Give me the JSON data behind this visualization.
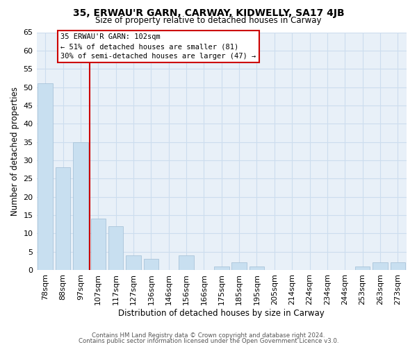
{
  "title": "35, ERWAU'R GARN, CARWAY, KIDWELLY, SA17 4JB",
  "subtitle": "Size of property relative to detached houses in Carway",
  "xlabel": "Distribution of detached houses by size in Carway",
  "ylabel": "Number of detached properties",
  "bar_labels": [
    "78sqm",
    "88sqm",
    "97sqm",
    "107sqm",
    "117sqm",
    "127sqm",
    "136sqm",
    "146sqm",
    "156sqm",
    "166sqm",
    "175sqm",
    "185sqm",
    "195sqm",
    "205sqm",
    "214sqm",
    "224sqm",
    "234sqm",
    "244sqm",
    "253sqm",
    "263sqm",
    "273sqm"
  ],
  "bar_values": [
    51,
    28,
    35,
    14,
    12,
    4,
    3,
    0,
    4,
    0,
    1,
    2,
    1,
    0,
    0,
    0,
    0,
    0,
    1,
    2,
    2
  ],
  "bar_color": "#c8dff0",
  "bar_edge_color": "#a0bdd4",
  "grid_color": "#ccddee",
  "vline_color": "#cc0000",
  "annotation_title": "35 ERWAU'R GARN: 102sqm",
  "annotation_line1": "← 51% of detached houses are smaller (81)",
  "annotation_line2": "30% of semi-detached houses are larger (47) →",
  "ylim": [
    0,
    65
  ],
  "yticks": [
    0,
    5,
    10,
    15,
    20,
    25,
    30,
    35,
    40,
    45,
    50,
    55,
    60,
    65
  ],
  "plot_bg_color": "#e8f0f8",
  "footnote1": "Contains HM Land Registry data © Crown copyright and database right 2024.",
  "footnote2": "Contains public sector information licensed under the Open Government Licence v3.0."
}
